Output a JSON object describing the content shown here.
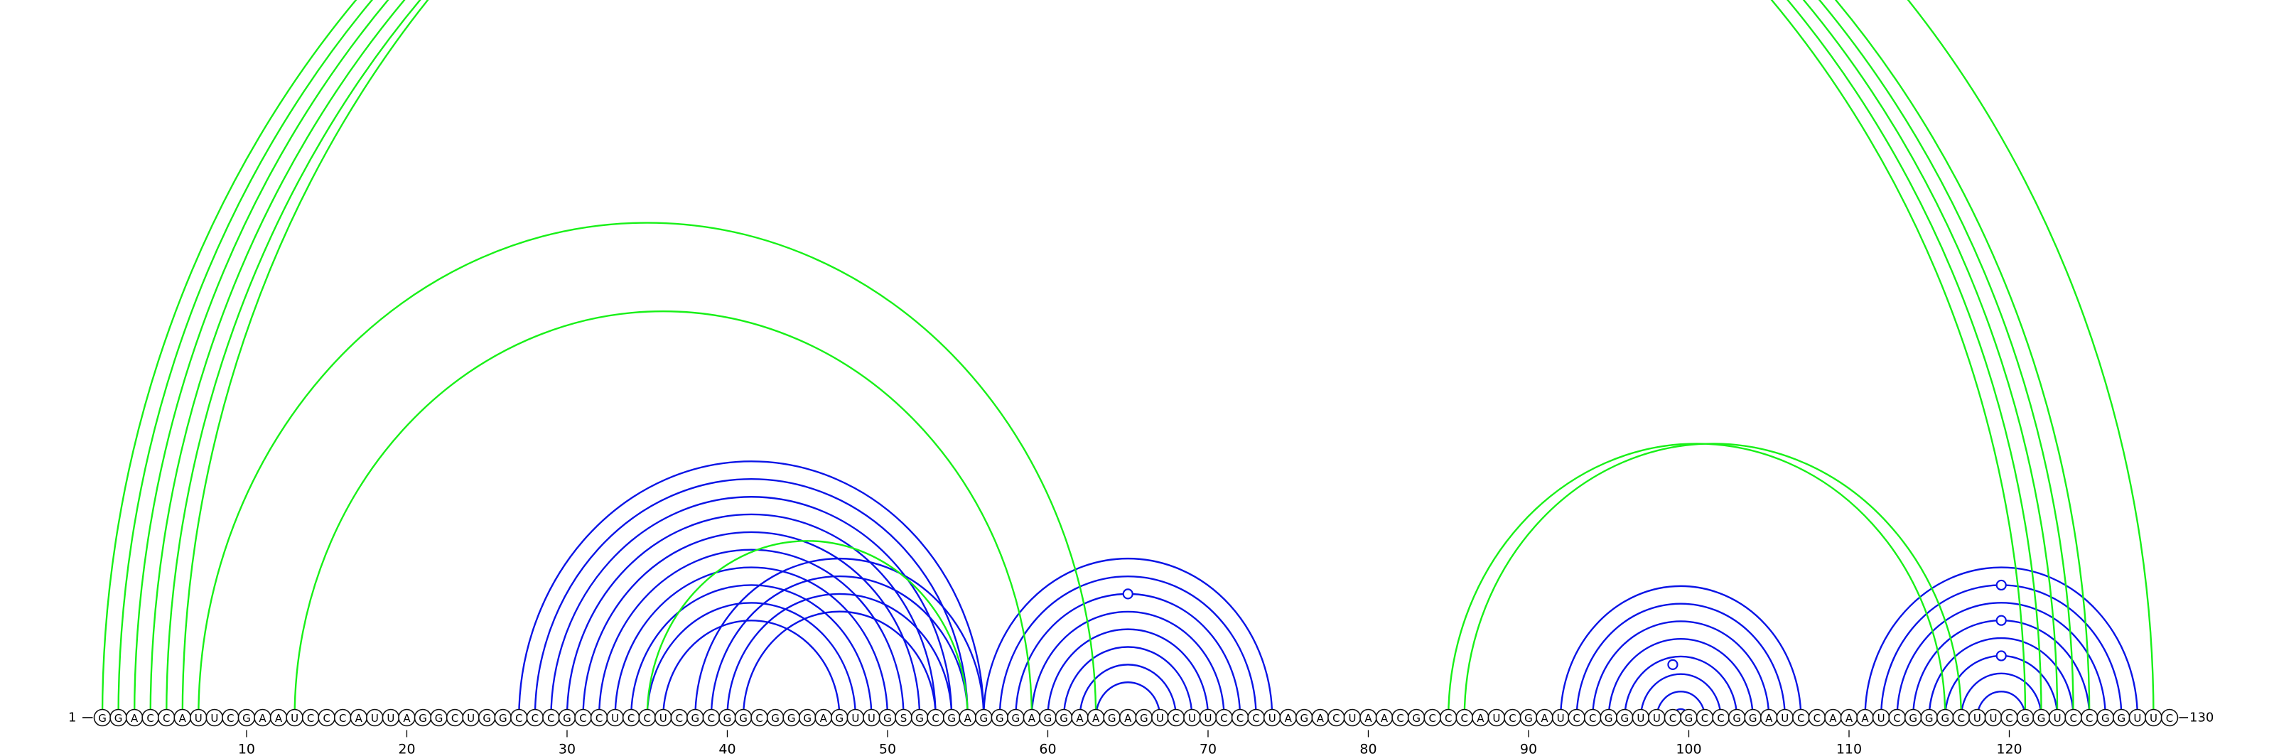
{
  "diagram": {
    "sequence": "GGACCAUUCGAAUCCCAUUAGGCUGGCCCGCCUCCUCGCGGCGGGAGUUGSGCGAGGGAGGAAGAGUCUUCCCUAGACUAACGCCCAUCGAUCCGGUUCGCCGGAUCCAAAUCGGGCUUCGGUCCGGUUC",
    "start_label": "1",
    "end_label": "130",
    "tick_values": [
      10,
      20,
      30,
      40,
      50,
      60,
      70,
      80,
      90,
      100,
      110,
      120
    ],
    "colors": {
      "blue_pairs": "#0a14e6",
      "green_pairs": "#18f018",
      "nucleotide_outline": "#111111"
    },
    "blue_helices": [
      {
        "i": 27,
        "j": 56,
        "length": 1
      },
      {
        "i": 28,
        "j": 55,
        "length": 1
      },
      {
        "i": 29,
        "j": 54,
        "length": 1
      },
      {
        "i": 30,
        "j": 53,
        "length": 1
      },
      {
        "i": 31,
        "j": 52,
        "length": 1
      },
      {
        "i": 32,
        "j": 51,
        "length": 1
      },
      {
        "i": 33,
        "j": 50,
        "length": 1
      },
      {
        "i": 34,
        "j": 49,
        "length": 1
      },
      {
        "i": 35,
        "j": 48,
        "length": 1
      },
      {
        "i": 36,
        "j": 47,
        "length": 1
      },
      {
        "i": 38,
        "j": 56,
        "length": 1
      },
      {
        "i": 39,
        "j": 55,
        "length": 1
      },
      {
        "i": 40,
        "j": 54,
        "length": 1
      },
      {
        "i": 41,
        "j": 53,
        "length": 1
      },
      {
        "i": 56,
        "j": 74,
        "length": 1
      },
      {
        "i": 57,
        "j": 73,
        "length": 1
      },
      {
        "i": 58,
        "j": 72,
        "length": 1
      },
      {
        "i": 59,
        "j": 71,
        "length": 1
      },
      {
        "i": 60,
        "j": 70,
        "length": 1
      },
      {
        "i": 61,
        "j": 69,
        "length": 1
      },
      {
        "i": 62,
        "j": 68,
        "length": 1
      },
      {
        "i": 63,
        "j": 67,
        "length": 1
      },
      {
        "i": 92,
        "j": 107,
        "length": 1
      },
      {
        "i": 93,
        "j": 106,
        "length": 1
      },
      {
        "i": 94,
        "j": 105,
        "length": 1
      },
      {
        "i": 95,
        "j": 104,
        "length": 1
      },
      {
        "i": 96,
        "j": 103,
        "length": 1
      },
      {
        "i": 97,
        "j": 102,
        "length": 1
      },
      {
        "i": 98,
        "j": 101,
        "length": 1
      },
      {
        "i": 99,
        "j": 100,
        "length": 1
      },
      {
        "i": 111,
        "j": 128,
        "length": 1
      },
      {
        "i": 112,
        "j": 127,
        "length": 1
      },
      {
        "i": 113,
        "j": 126,
        "length": 1
      },
      {
        "i": 114,
        "j": 125,
        "length": 1
      },
      {
        "i": 115,
        "j": 124,
        "length": 1
      },
      {
        "i": 116,
        "j": 123,
        "length": 1
      },
      {
        "i": 117,
        "j": 122,
        "length": 1
      },
      {
        "i": 118,
        "j": 121,
        "length": 1
      }
    ],
    "green_helices": [
      {
        "i": 1,
        "j": 121,
        "length": 1
      },
      {
        "i": 2,
        "j": 122,
        "length": 1
      },
      {
        "i": 3,
        "j": 123,
        "length": 1
      },
      {
        "i": 4,
        "j": 124,
        "length": 1
      },
      {
        "i": 5,
        "j": 125,
        "length": 1
      },
      {
        "i": 6,
        "j": 129,
        "length": 1
      },
      {
        "i": 7,
        "j": 63,
        "length": 1
      },
      {
        "i": 13,
        "j": 59,
        "length": 1
      },
      {
        "i": 35,
        "j": 55,
        "length": 1
      },
      {
        "i": 85,
        "j": 116,
        "length": 1
      },
      {
        "i": 86,
        "j": 117,
        "length": 1
      }
    ],
    "markers": [
      {
        "color": "green",
        "i": 1,
        "j": 129
      },
      {
        "color": "blue",
        "i": 58,
        "j": 72
      },
      {
        "color": "blue",
        "i": 96,
        "j": 102
      },
      {
        "color": "blue",
        "i": 112,
        "j": 127
      },
      {
        "color": "blue",
        "i": 114,
        "j": 125
      },
      {
        "color": "blue",
        "i": 116,
        "j": 123
      }
    ]
  }
}
